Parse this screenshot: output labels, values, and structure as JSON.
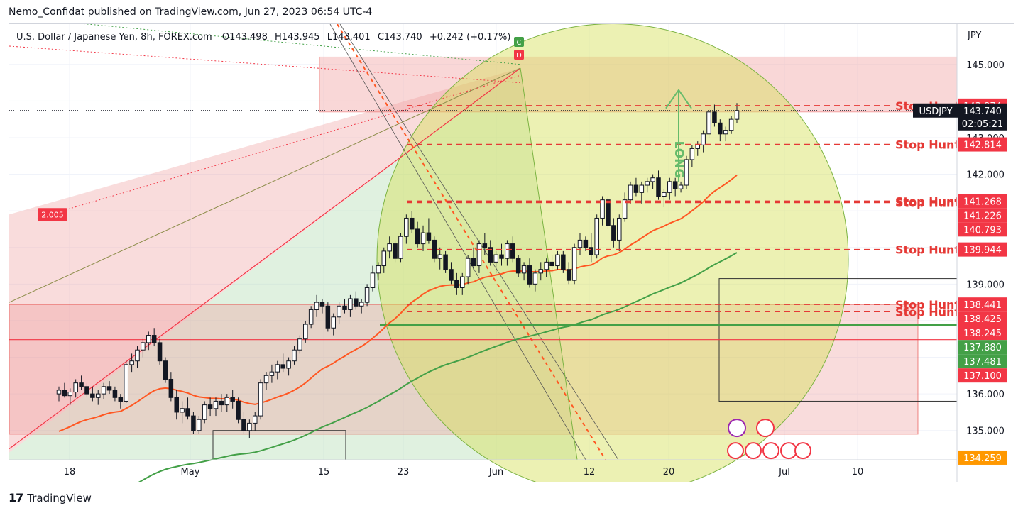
{
  "header": {
    "text": "Nemo_Confidat published on TradingView.com, Jun 27, 2023 06:54 UTC-4"
  },
  "footer": {
    "brand": "TradingView",
    "logo": "tradingview-logo"
  },
  "legend": {
    "symbol": "U.S. Dollar / Japanese Yen, 8h, FOREX.com",
    "open_label": "O",
    "open": "143.498",
    "high_label": "H",
    "high": "143.945",
    "low_label": "L",
    "low": "143.401",
    "close_label": "C",
    "close": "143.740",
    "change": "+0.242 (+0.17%)"
  },
  "colors": {
    "up_candle": "#ffffff",
    "down_candle": "#131722",
    "ema_fast": "#ff5722",
    "ema_slow": "#43a047",
    "stop_hunt": "#e53935",
    "long_label": "#66bb6a",
    "circle_fill": "#d4e157",
    "pink_zone": "#ef9a9a"
  },
  "chart_data": {
    "type": "candlestick",
    "currency": "JPY",
    "ylim": [
      134.2,
      146.1
    ],
    "y_ticks": [
      "145.000",
      "143.000",
      "142.000",
      "139.000",
      "136.000",
      "135.000"
    ],
    "x_ticks": [
      "18",
      "May",
      "15",
      "23",
      "Jun",
      "12",
      "20",
      "Jul",
      "10"
    ],
    "symbol_tag": "USDJPY",
    "last_price": "143.740",
    "countdown": "02:05:21",
    "price_labels": [
      {
        "value": "143.874",
        "bg": "#f23645"
      },
      {
        "value": "142.814",
        "bg": "#f23645"
      },
      {
        "value": "141.268",
        "bg": "#f23645"
      },
      {
        "value": "141.226",
        "bg": "#f23645"
      },
      {
        "value": "140.793",
        "bg": "#f23645"
      },
      {
        "value": "139.944",
        "bg": "#f23645"
      },
      {
        "value": "138.441",
        "bg": "#f23645"
      },
      {
        "value": "138.425",
        "bg": "#f23645"
      },
      {
        "value": "138.245",
        "bg": "#f23645"
      },
      {
        "value": "137.880",
        "bg": "#43a047"
      },
      {
        "value": "137.481",
        "bg": "#43a047"
      },
      {
        "value": "137.100",
        "bg": "#f23645"
      },
      {
        "value": "134.259",
        "bg": "#ff9800"
      }
    ],
    "stop_hunt_label": "Stop Hunt",
    "stop_hunts": [
      143.874,
      142.814,
      141.268,
      141.226,
      139.944,
      138.441,
      138.245
    ],
    "long_text": "LONG",
    "badge_value": "2.005",
    "markers": [
      "C",
      "D"
    ],
    "candles": [
      [
        136.0,
        136.2,
        135.8,
        136.1
      ],
      [
        136.1,
        136.3,
        135.9,
        135.95
      ],
      [
        135.95,
        136.15,
        135.7,
        136.05
      ],
      [
        136.05,
        136.4,
        135.9,
        136.3
      ],
      [
        136.3,
        136.5,
        136.1,
        136.2
      ],
      [
        136.2,
        136.3,
        135.9,
        136.0
      ],
      [
        136.0,
        136.2,
        135.8,
        135.9
      ],
      [
        135.9,
        136.1,
        135.7,
        136.0
      ],
      [
        136.0,
        136.3,
        135.85,
        136.2
      ],
      [
        136.2,
        136.35,
        136.0,
        136.1
      ],
      [
        136.1,
        136.2,
        135.8,
        135.9
      ],
      [
        135.9,
        136.0,
        135.6,
        135.8
      ],
      [
        135.8,
        136.9,
        135.75,
        136.8
      ],
      [
        136.8,
        137.1,
        136.6,
        136.9
      ],
      [
        136.9,
        137.3,
        136.7,
        137.2
      ],
      [
        137.2,
        137.5,
        137.0,
        137.4
      ],
      [
        137.4,
        137.7,
        137.2,
        137.6
      ],
      [
        137.6,
        137.8,
        137.3,
        137.4
      ],
      [
        137.4,
        137.5,
        136.8,
        136.9
      ],
      [
        136.9,
        137.0,
        136.3,
        136.4
      ],
      [
        136.4,
        136.6,
        135.8,
        135.9
      ],
      [
        135.9,
        136.1,
        135.3,
        135.5
      ],
      [
        135.5,
        135.8,
        135.2,
        135.6
      ],
      [
        135.6,
        135.9,
        135.3,
        135.4
      ],
      [
        135.4,
        135.5,
        134.9,
        135.0
      ],
      [
        135.0,
        135.4,
        134.9,
        135.3
      ],
      [
        135.3,
        135.8,
        135.2,
        135.7
      ],
      [
        135.7,
        135.9,
        135.4,
        135.6
      ],
      [
        135.6,
        135.9,
        135.4,
        135.8
      ],
      [
        135.8,
        136.0,
        135.5,
        135.7
      ],
      [
        135.7,
        136.0,
        135.5,
        135.9
      ],
      [
        135.9,
        136.1,
        135.6,
        135.8
      ],
      [
        135.8,
        135.9,
        135.2,
        135.3
      ],
      [
        135.3,
        135.5,
        134.9,
        135.0
      ],
      [
        135.0,
        135.3,
        134.8,
        135.2
      ],
      [
        135.2,
        135.5,
        135.0,
        135.4
      ],
      [
        135.4,
        136.4,
        135.3,
        136.3
      ],
      [
        136.3,
        136.6,
        136.1,
        136.5
      ],
      [
        136.5,
        136.8,
        136.3,
        136.6
      ],
      [
        136.6,
        136.9,
        136.4,
        136.8
      ],
      [
        136.8,
        137.1,
        136.6,
        136.7
      ],
      [
        136.7,
        137.0,
        136.5,
        136.9
      ],
      [
        136.9,
        137.3,
        136.8,
        137.2
      ],
      [
        137.2,
        137.6,
        137.1,
        137.5
      ],
      [
        137.5,
        138.0,
        137.4,
        137.9
      ],
      [
        137.9,
        138.4,
        137.8,
        138.3
      ],
      [
        138.3,
        138.7,
        138.1,
        138.5
      ],
      [
        138.5,
        138.6,
        138.2,
        138.4
      ],
      [
        138.4,
        138.5,
        137.7,
        137.8
      ],
      [
        137.8,
        138.2,
        137.6,
        138.1
      ],
      [
        138.1,
        138.5,
        137.9,
        138.4
      ],
      [
        138.4,
        138.6,
        138.2,
        138.3
      ],
      [
        138.3,
        138.7,
        138.1,
        138.6
      ],
      [
        138.6,
        138.8,
        138.3,
        138.4
      ],
      [
        138.4,
        138.6,
        138.2,
        138.5
      ],
      [
        138.5,
        139.0,
        138.4,
        138.9
      ],
      [
        138.9,
        139.5,
        138.8,
        139.3
      ],
      [
        139.3,
        139.6,
        139.1,
        139.5
      ],
      [
        139.5,
        140.0,
        139.3,
        139.9
      ],
      [
        139.9,
        140.3,
        139.7,
        140.1
      ],
      [
        140.1,
        140.2,
        139.6,
        139.7
      ],
      [
        139.7,
        140.4,
        139.6,
        140.3
      ],
      [
        140.3,
        140.9,
        140.1,
        140.8
      ],
      [
        140.8,
        141.0,
        140.4,
        140.5
      ],
      [
        140.5,
        140.7,
        140.0,
        140.1
      ],
      [
        140.1,
        140.6,
        139.9,
        140.4
      ],
      [
        140.4,
        140.8,
        140.1,
        140.2
      ],
      [
        140.2,
        140.3,
        139.6,
        139.7
      ],
      [
        139.7,
        140.0,
        139.4,
        139.8
      ],
      [
        139.8,
        139.9,
        139.3,
        139.4
      ],
      [
        139.4,
        139.6,
        139.0,
        139.1
      ],
      [
        139.1,
        139.3,
        138.7,
        138.9
      ],
      [
        138.9,
        139.3,
        138.7,
        139.2
      ],
      [
        139.2,
        139.8,
        139.0,
        139.7
      ],
      [
        139.7,
        140.0,
        139.4,
        139.5
      ],
      [
        139.5,
        140.2,
        139.3,
        140.1
      ],
      [
        140.1,
        140.4,
        139.8,
        140.0
      ],
      [
        140.0,
        140.2,
        139.5,
        139.6
      ],
      [
        139.6,
        139.9,
        139.3,
        139.8
      ],
      [
        139.8,
        140.1,
        139.5,
        139.7
      ],
      [
        139.7,
        140.2,
        139.5,
        140.1
      ],
      [
        140.1,
        140.3,
        139.6,
        139.7
      ],
      [
        139.7,
        139.8,
        139.2,
        139.3
      ],
      [
        139.3,
        139.6,
        139.1,
        139.5
      ],
      [
        139.5,
        139.7,
        138.9,
        139.0
      ],
      [
        139.0,
        139.4,
        138.8,
        139.3
      ],
      [
        139.3,
        139.6,
        139.1,
        139.4
      ],
      [
        139.4,
        139.7,
        139.2,
        139.6
      ],
      [
        139.6,
        139.8,
        139.3,
        139.5
      ],
      [
        139.5,
        139.9,
        139.4,
        139.8
      ],
      [
        139.8,
        139.9,
        139.3,
        139.4
      ],
      [
        139.4,
        139.6,
        139.0,
        139.1
      ],
      [
        139.1,
        140.1,
        139.0,
        140.0
      ],
      [
        140.0,
        140.4,
        139.8,
        140.2
      ],
      [
        140.2,
        140.3,
        139.9,
        140.0
      ],
      [
        140.0,
        140.4,
        139.6,
        139.8
      ],
      [
        139.8,
        140.9,
        139.7,
        140.8
      ],
      [
        140.8,
        141.4,
        140.6,
        141.3
      ],
      [
        141.3,
        141.4,
        140.5,
        140.6
      ],
      [
        140.6,
        140.8,
        140.0,
        140.2
      ],
      [
        140.2,
        140.9,
        139.9,
        140.8
      ],
      [
        140.8,
        141.5,
        140.7,
        141.3
      ],
      [
        141.3,
        141.8,
        141.2,
        141.7
      ],
      [
        141.7,
        141.9,
        141.4,
        141.5
      ],
      [
        141.5,
        141.8,
        141.2,
        141.7
      ],
      [
        141.7,
        141.9,
        141.5,
        141.8
      ],
      [
        141.8,
        142.0,
        141.6,
        141.9
      ],
      [
        141.9,
        142.1,
        141.3,
        141.4
      ],
      [
        141.4,
        141.6,
        141.1,
        141.5
      ],
      [
        141.5,
        141.9,
        141.3,
        141.8
      ],
      [
        141.8,
        141.9,
        141.4,
        141.6
      ],
      [
        141.6,
        141.8,
        141.5,
        141.7
      ],
      [
        141.7,
        142.5,
        141.6,
        142.4
      ],
      [
        142.4,
        142.8,
        142.2,
        142.7
      ],
      [
        142.7,
        142.9,
        142.5,
        142.8
      ],
      [
        142.8,
        143.2,
        142.6,
        143.1
      ],
      [
        143.1,
        143.8,
        143.0,
        143.7
      ],
      [
        143.7,
        143.9,
        143.3,
        143.4
      ],
      [
        143.4,
        143.5,
        142.9,
        143.1
      ],
      [
        143.1,
        143.3,
        142.9,
        143.2
      ],
      [
        143.2,
        143.6,
        143.1,
        143.5
      ],
      [
        143.5,
        143.945,
        143.401,
        143.74
      ]
    ]
  }
}
